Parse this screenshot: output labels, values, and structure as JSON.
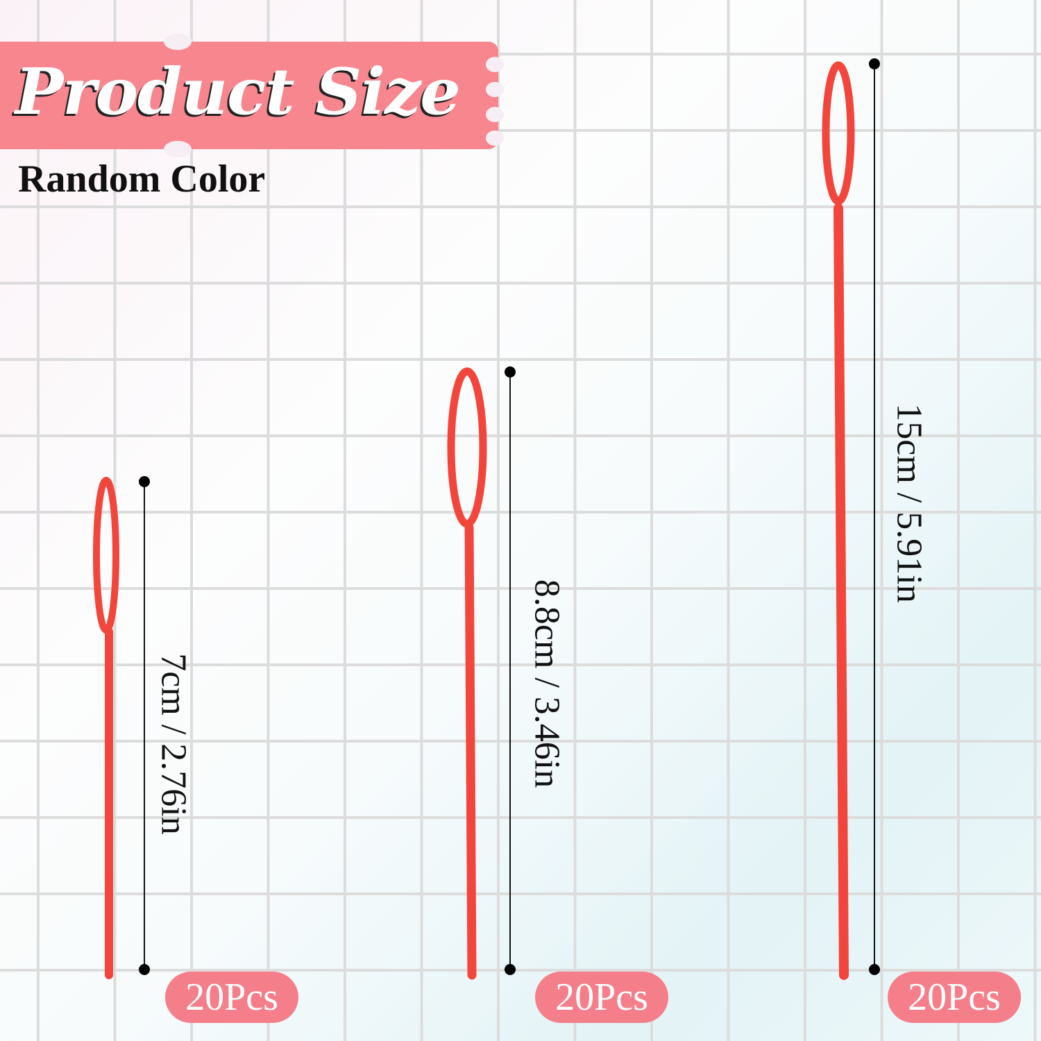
{
  "header": {
    "title": "Product Size",
    "subtitle": "Random Color"
  },
  "colors": {
    "banner": "#f7868f",
    "badge": "#f47f8a",
    "needle": "#f2463c",
    "grid": "#dcdcdc"
  },
  "needles": [
    {
      "size_label": "7cm / 2.76in",
      "quantity": "20Pcs"
    },
    {
      "size_label": "8.8cm / 3.46in",
      "quantity": "20Pcs"
    },
    {
      "size_label": "15cm / 5.91in",
      "quantity": "20Pcs"
    }
  ]
}
